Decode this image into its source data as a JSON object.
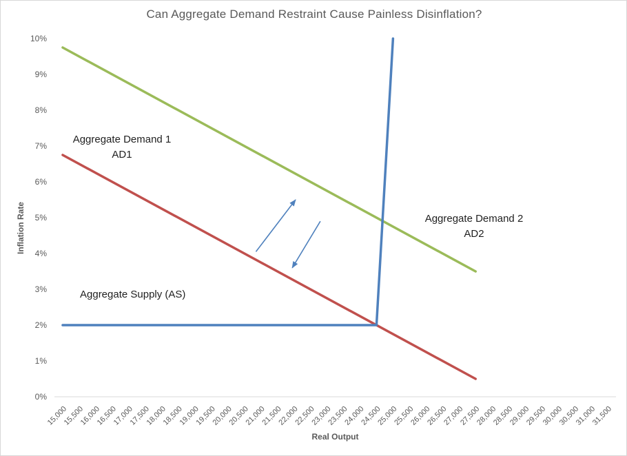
{
  "title": "Can Aggregate Demand Restraint Cause Painless Disinflation?",
  "axes": {
    "x_label": "Real Output",
    "y_label": "Inflation Rate"
  },
  "annotations": {
    "ad1_line1": "Aggregate Demand 1",
    "ad1_line2": "AD1",
    "ad2_line1": "Aggregate Demand 2",
    "ad2_line2": "AD2",
    "as_label": "Aggregate Supply (AS)"
  },
  "colors": {
    "blue": "#4f81bd",
    "red": "#c0504d",
    "green": "#9bbb59",
    "axis_text": "#595959",
    "axis_line": "#d9d9d9",
    "annotation_text": "#1f1f1f"
  },
  "chart_data": {
    "type": "line",
    "title": "Can Aggregate Demand Restraint Cause Painless Disinflation?",
    "xlabel": "Real Output",
    "ylabel": "Inflation Rate",
    "grid": false,
    "legend": "none",
    "ylim": [
      0,
      10
    ],
    "x_categories": [
      15000,
      15500,
      16000,
      16500,
      17000,
      17500,
      18000,
      18500,
      19000,
      19500,
      20000,
      20500,
      21000,
      21500,
      22000,
      22500,
      23000,
      23500,
      24000,
      24500,
      25000,
      25500,
      26000,
      26500,
      27000,
      27500,
      28000,
      28500,
      29000,
      29500,
      30000,
      30500,
      31000,
      31500
    ],
    "x_tick_labels": [
      "15,000",
      "15,500",
      "16,000",
      "16,500",
      "17,000",
      "17,500",
      "18,000",
      "18,500",
      "19,000",
      "19,500",
      "20,000",
      "20,500",
      "21,000",
      "21,500",
      "22,000",
      "22,500",
      "23,000",
      "23,500",
      "24,000",
      "24,500",
      "25,000",
      "25,500",
      "26,000",
      "26,500",
      "27,000",
      "27,500",
      "28,000",
      "28,500",
      "29,000",
      "29,500",
      "30,000",
      "30,500",
      "31,000",
      "31,500"
    ],
    "y_ticks": [
      0,
      1,
      2,
      3,
      4,
      5,
      6,
      7,
      8,
      9,
      10
    ],
    "y_tick_labels": [
      "0%",
      "1%",
      "2%",
      "3%",
      "4%",
      "5%",
      "6%",
      "7%",
      "8%",
      "9%",
      "10%"
    ],
    "series": [
      {
        "name": "Aggregate Demand 1 (AD1)",
        "color": "#c0504d",
        "points": [
          [
            15000,
            6.75
          ],
          [
            27500,
            0.5
          ]
        ]
      },
      {
        "name": "Aggregate Demand 2 (AD2)",
        "color": "#9bbb59",
        "points": [
          [
            15000,
            9.75
          ],
          [
            27500,
            3.5
          ]
        ]
      },
      {
        "name": "Aggregate Supply (AS)",
        "color": "#4f81bd",
        "points": [
          [
            15000,
            2
          ],
          [
            24500,
            2
          ],
          [
            25000,
            10
          ]
        ]
      }
    ],
    "arrows": [
      {
        "name": "arrow-toward-ad2",
        "from": [
          20850,
          4.05
        ],
        "to": [
          22050,
          5.5
        ],
        "color": "#4f81bd"
      },
      {
        "name": "arrow-toward-ad1",
        "from": [
          22800,
          4.9
        ],
        "to": [
          21950,
          3.6
        ],
        "color": "#4f81bd"
      }
    ]
  }
}
